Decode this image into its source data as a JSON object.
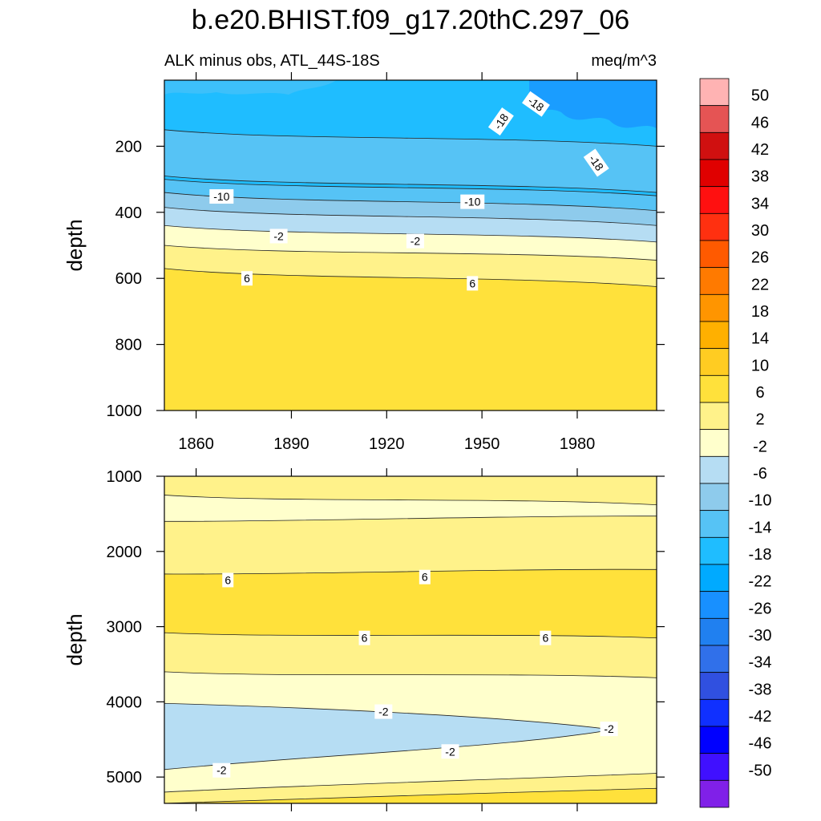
{
  "title": "b.e20.BHIST.f09_g17.20thC.297_06",
  "chart_data": {
    "type": "heatmap",
    "subtitle_left": "ALK minus obs, ATL_44S-18S",
    "subtitle_right": "meq/m^3",
    "x_ticks": [
      "1860",
      "1890",
      "1920",
      "1950",
      "1980"
    ],
    "x_tick_values": [
      1860,
      1890,
      1920,
      1950,
      1980
    ],
    "xlim": [
      1850,
      2005
    ],
    "ylabel": "depth",
    "panels": [
      {
        "name": "upper",
        "ylim": [
          0,
          1000
        ],
        "y_ticks": [
          "200",
          "400",
          "600",
          "800",
          "1000"
        ],
        "y_tick_values": [
          200,
          400,
          600,
          800,
          1000
        ],
        "bands": [
          {
            "top_start": 0,
            "top_end": 0,
            "color": "#1fbdff"
          },
          {
            "top_start": 150,
            "top_end": 200,
            "color": "#56c3f5"
          },
          {
            "top_start": 290,
            "top_end": 340,
            "color": "#1fbdff"
          },
          {
            "top_start": 300,
            "top_end": 350,
            "color": "#56c3f5"
          },
          {
            "top_start": 340,
            "top_end": 395,
            "color": "#8ecbec"
          },
          {
            "top_start": 385,
            "top_end": 440,
            "color": "#b6ddf3"
          },
          {
            "top_start": 440,
            "top_end": 490,
            "color": "#ffffcc"
          },
          {
            "top_start": 500,
            "top_end": 545,
            "color": "#fff28a"
          },
          {
            "top_start": 570,
            "top_end": 625,
            "color": "#ffe13b"
          }
        ],
        "contour_labels": [
          {
            "text": "-18",
            "x": 1967,
            "y": 72,
            "angle": 35
          },
          {
            "text": "-18",
            "x": 1956,
            "y": 125,
            "angle": -55
          },
          {
            "text": "-18",
            "x": 1986,
            "y": 250,
            "angle": 55
          },
          {
            "text": "-10",
            "x": 1868,
            "y": 352,
            "angle": 0
          },
          {
            "text": "-10",
            "x": 1947,
            "y": 368,
            "angle": 0
          },
          {
            "text": "-2",
            "x": 1886,
            "y": 472,
            "angle": 0
          },
          {
            "text": "-2",
            "x": 1929,
            "y": 487,
            "angle": 0
          },
          {
            "text": "6",
            "x": 1876,
            "y": 600,
            "angle": 0
          },
          {
            "text": "6",
            "x": 1947,
            "y": 615,
            "angle": 0
          }
        ]
      },
      {
        "name": "lower",
        "ylim": [
          1000,
          5350
        ],
        "y_ticks": [
          "1000",
          "2000",
          "3000",
          "4000",
          "5000"
        ],
        "y_tick_values": [
          1000,
          2000,
          3000,
          4000,
          5000
        ],
        "bands": [
          {
            "top_start": 1000,
            "top_end": 1000,
            "color": "#fff28a"
          },
          {
            "top_start": 1250,
            "top_end": 1380,
            "color": "#ffffcc"
          },
          {
            "top_start": 1600,
            "top_end": 1530,
            "color": "#fff28a"
          },
          {
            "top_start": 2300,
            "top_end": 2240,
            "color": "#ffe13b"
          },
          {
            "top_start": 3080,
            "top_end": 3150,
            "color": "#fff28a"
          },
          {
            "top_start": 3600,
            "top_end": 3680,
            "color": "#ffffcc"
          },
          {
            "top_start": 5200,
            "top_end": 4950,
            "color": "#fff28a"
          },
          {
            "top_start": 5350,
            "top_end": 5150,
            "color": "#ffe13b"
          }
        ],
        "contour_labels": [
          {
            "text": "6",
            "x": 1870,
            "y": 2380,
            "angle": 0
          },
          {
            "text": "6",
            "x": 1932,
            "y": 2340,
            "angle": 0
          },
          {
            "text": "6",
            "x": 1913,
            "y": 3150,
            "angle": 0
          },
          {
            "text": "6",
            "x": 1970,
            "y": 3150,
            "angle": 0
          },
          {
            "text": "-2",
            "x": 1919,
            "y": 4130,
            "angle": 0
          },
          {
            "text": "-2",
            "x": 1990,
            "y": 4360,
            "angle": 0
          },
          {
            "text": "-2",
            "x": 1940,
            "y": 4660,
            "angle": 0
          },
          {
            "text": "-2",
            "x": 1868,
            "y": 4910,
            "angle": 0
          }
        ]
      }
    ],
    "colorbar": {
      "labels": [
        "50",
        "46",
        "42",
        "38",
        "34",
        "30",
        "26",
        "22",
        "18",
        "14",
        "10",
        "6",
        "2",
        "-2",
        "-6",
        "-10",
        "-14",
        "-18",
        "-22",
        "-26",
        "-30",
        "-34",
        "-38",
        "-42",
        "-46",
        "-50"
      ],
      "colors": [
        "#ffb3b3",
        "#e55454",
        "#d01010",
        "#e00000",
        "#ff1010",
        "#ff3010",
        "#ff5a00",
        "#ff7a00",
        "#ff9500",
        "#ffb000",
        "#ffcc22",
        "#ffe13b",
        "#fff28a",
        "#ffffcc",
        "#b6ddf3",
        "#8ecbec",
        "#56c3f5",
        "#1fbdff",
        "#00aaff",
        "#1890ff",
        "#2080f0",
        "#3070ea",
        "#3050e0",
        "#1030ff",
        "#0000ff",
        "#4010ff",
        "#8020e8"
      ]
    }
  }
}
